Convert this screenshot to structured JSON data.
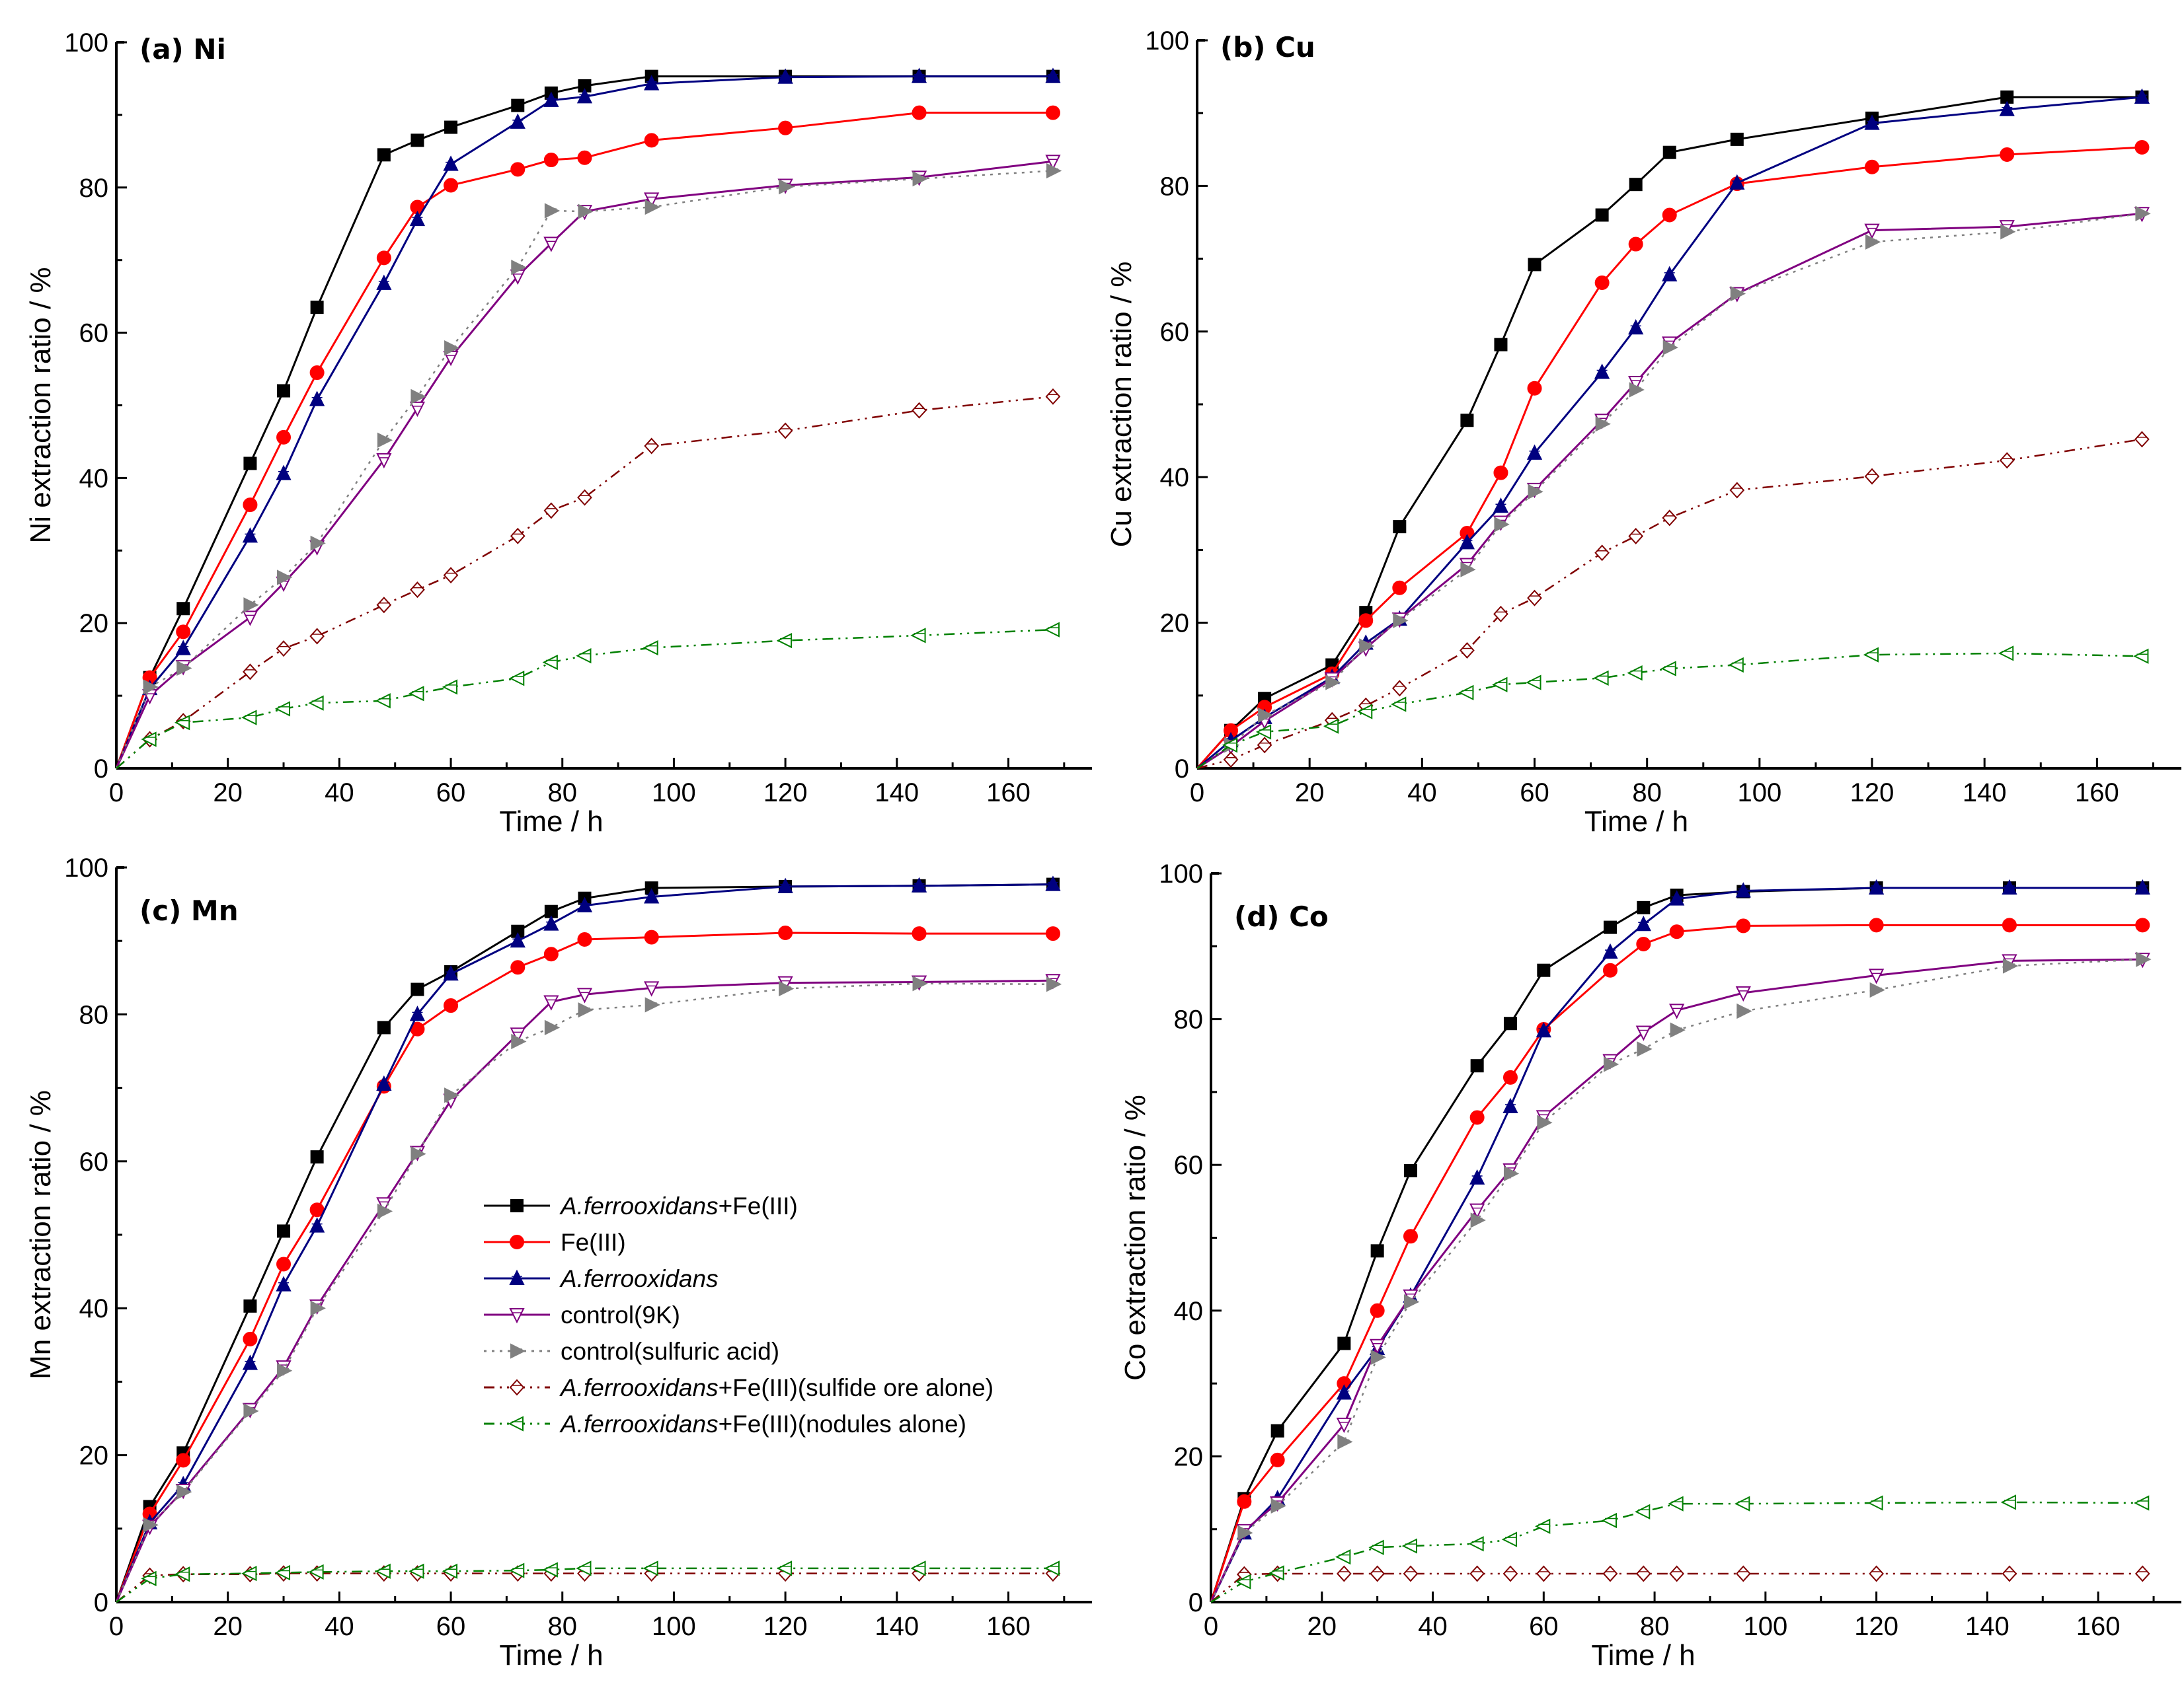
{
  "chart_data": {
    "type": "line",
    "x": [
      0,
      6,
      12,
      24,
      30,
      36,
      48,
      54,
      60,
      72,
      78,
      84,
      96,
      120,
      144,
      168
    ],
    "legend": [
      {
        "italic": "A.ferrooxidans",
        "rest": "+Fe(III)"
      },
      {
        "italic": "",
        "rest": "Fe(III)"
      },
      {
        "italic": "A.ferrooxidans",
        "rest": ""
      },
      {
        "italic": "",
        "rest": "control(9K)"
      },
      {
        "italic": "",
        "rest": "control(sulfuric acid)"
      },
      {
        "italic": "A.ferrooxidans",
        "rest": "+Fe(III)(sulfide ore alone)"
      },
      {
        "italic": "A.ferrooxidans",
        "rest": "+Fe(III)(nodules alone)"
      }
    ],
    "series_styles": [
      {
        "color": "#000000",
        "marker": "square",
        "dash": "solid"
      },
      {
        "color": "#ff0000",
        "marker": "circle",
        "dash": "solid"
      },
      {
        "color": "#000080",
        "marker": "triangle-up",
        "dash": "solid"
      },
      {
        "color": "#800080",
        "marker": "triangle-down-open",
        "dash": "solid"
      },
      {
        "color": "#808080",
        "marker": "triangle-right",
        "dash": "dot"
      },
      {
        "color": "#800000",
        "marker": "diamond-open",
        "dash": "dash-dot-dot"
      },
      {
        "color": "#008000",
        "marker": "triangle-left-open",
        "dash": "dash-dot-dot"
      }
    ],
    "panels": [
      {
        "title": "(a) Ni",
        "xlabel": "Time / h",
        "ylabel": "Ni extraction ratio / %",
        "xlim": [
          0,
          175
        ],
        "ylim": [
          0,
          100
        ],
        "xticks": [
          0,
          20,
          40,
          60,
          80,
          100,
          120,
          140,
          160
        ],
        "yticks": [
          0,
          20,
          40,
          60,
          80,
          100
        ],
        "series": [
          [
            0,
            12.5,
            22,
            42,
            52,
            63.5,
            84.5,
            86.5,
            88.3,
            91.3,
            93,
            94,
            95.3,
            95.3,
            95.3,
            95.3
          ],
          [
            0,
            12.5,
            18.8,
            36.3,
            45.6,
            54.5,
            70.3,
            77.3,
            80.3,
            82.5,
            83.8,
            84.1,
            86.5,
            88.2,
            90.3,
            90.3
          ],
          [
            0,
            11,
            16.5,
            32,
            40.6,
            50.8,
            66.8,
            75.6,
            83.2,
            89,
            92,
            92.5,
            94.3,
            95.2,
            95.3,
            95.3
          ],
          [
            0,
            10,
            14,
            20.8,
            25.5,
            30.5,
            42.5,
            49.6,
            56.6,
            67.8,
            72.3,
            76.7,
            78.4,
            80.3,
            81.4,
            83.6
          ],
          [
            0,
            11.2,
            13.8,
            22.5,
            26.3,
            31,
            45.2,
            51.2,
            57.9,
            69,
            76.8,
            76.7,
            77.3,
            80.1,
            81.2,
            82.3
          ],
          [
            0,
            4,
            6.5,
            13.3,
            16.5,
            18.2,
            22.5,
            24.6,
            26.6,
            32,
            35.5,
            37.3,
            44.4,
            46.5,
            49.3,
            51.2
          ],
          [
            0,
            4,
            6.3,
            7,
            8.2,
            9,
            9.3,
            10.3,
            11.2,
            12.4,
            14.6,
            15.5,
            16.6,
            17.6,
            18.3,
            19.1
          ]
        ]
      },
      {
        "title": "(b) Cu",
        "xlabel": "Time / h",
        "ylabel": "Cu extraction ratio / %",
        "xlim": [
          0,
          175
        ],
        "ylim": [
          0,
          100
        ],
        "xticks": [
          0,
          20,
          40,
          60,
          80,
          100,
          120,
          140,
          160
        ],
        "yticks": [
          0,
          20,
          40,
          60,
          80,
          100
        ],
        "series": [
          [
            0,
            5.2,
            9.6,
            14.2,
            21.4,
            33.2,
            47.8,
            58.2,
            69.2,
            76,
            80.2,
            84.6,
            86.4,
            89.3,
            92.2,
            92.2
          ],
          [
            0,
            5.2,
            8.4,
            13,
            20.3,
            24.8,
            32.3,
            40.6,
            52.2,
            66.7,
            72,
            76,
            80.3,
            82.6,
            84.3,
            85.3
          ],
          [
            0,
            3.8,
            7,
            12.5,
            17.2,
            20.5,
            31,
            36,
            43.3,
            54.4,
            60.5,
            67.8,
            80.4,
            88.6,
            90.5,
            92.2
          ],
          [
            0,
            3,
            6.5,
            12.3,
            16.5,
            20.5,
            28,
            33.8,
            38.3,
            47.8,
            53,
            58.4,
            65.2,
            73.9,
            74.4,
            76.2
          ],
          [
            0,
            3.2,
            7.3,
            11.8,
            16.8,
            20.3,
            27.3,
            33.5,
            38,
            47.3,
            52,
            57.8,
            65.2,
            72.3,
            73.7,
            76.2
          ],
          [
            0,
            1.2,
            3.2,
            6.6,
            8.6,
            11,
            16.2,
            21.2,
            23.4,
            29.6,
            31.9,
            34.4,
            38.2,
            40.1,
            42.3,
            45.2
          ],
          [
            0,
            3.2,
            5,
            5.8,
            7.8,
            8.8,
            10.4,
            11.5,
            11.8,
            12.4,
            13.1,
            13.7,
            14.2,
            15.6,
            15.8,
            15.4
          ]
        ]
      },
      {
        "title": "(c) Mn",
        "xlabel": "Time / h",
        "ylabel": "Mn extraction ratio / %",
        "xlim": [
          0,
          175
        ],
        "ylim": [
          0,
          100
        ],
        "xticks": [
          0,
          20,
          40,
          60,
          80,
          100,
          120,
          140,
          160
        ],
        "yticks": [
          0,
          20,
          40,
          60,
          80,
          100
        ],
        "series": [
          [
            0,
            13,
            20.3,
            40.3,
            50.5,
            60.6,
            78.2,
            83.4,
            85.8,
            91.3,
            94,
            95.8,
            97.2,
            97.4,
            97.5,
            97.7
          ],
          [
            0,
            12,
            19.3,
            35.8,
            46,
            53.4,
            70.2,
            78,
            81.2,
            86.4,
            88.2,
            90.2,
            90.5,
            91.1,
            91,
            91
          ],
          [
            0,
            10.8,
            16,
            32.5,
            43.2,
            51.2,
            70.5,
            80,
            85.5,
            90,
            92.3,
            94.8,
            96,
            97.4,
            97.5,
            97.7
          ],
          [
            0,
            10.3,
            15.2,
            26.2,
            32,
            40.3,
            54.2,
            61.2,
            68.3,
            77.3,
            81.7,
            82.7,
            83.6,
            84.3,
            84.4,
            84.6
          ],
          [
            0,
            10.5,
            15,
            26,
            31.5,
            40,
            53.2,
            61,
            69,
            76.3,
            78.2,
            80.6,
            81.3,
            83.5,
            84.2,
            84.1
          ],
          [
            0,
            3.6,
            3.8,
            3.8,
            3.9,
            3.9,
            3.9,
            3.9,
            3.9,
            3.9,
            3.9,
            3.9,
            3.9,
            3.9,
            3.9,
            3.9
          ],
          [
            0,
            3.2,
            3.8,
            3.9,
            4,
            4.1,
            4.2,
            4.2,
            4.2,
            4.3,
            4.4,
            4.6,
            4.6,
            4.6,
            4.6,
            4.6
          ]
        ]
      },
      {
        "title": "(d) Co",
        "xlabel": "Time / h",
        "ylabel": "Co extraction ratio / %",
        "xlim": [
          0,
          175
        ],
        "ylim": [
          0,
          100
        ],
        "xticks": [
          0,
          20,
          40,
          60,
          80,
          100,
          120,
          140,
          160
        ],
        "yticks": [
          0,
          20,
          40,
          60,
          80,
          100
        ],
        "series": [
          [
            0,
            14.2,
            23.5,
            35.5,
            48.2,
            59.2,
            73.6,
            79.4,
            86.7,
            92.6,
            95.3,
            97,
            97.5,
            98,
            98,
            98
          ],
          [
            0,
            13.8,
            19.5,
            30,
            40,
            50.2,
            66.5,
            72,
            78.6,
            86.7,
            90.3,
            92,
            92.8,
            92.9,
            92.9,
            92.9
          ],
          [
            0,
            9.5,
            14.2,
            28.7,
            34.8,
            42,
            58.2,
            68,
            78.4,
            89.2,
            93,
            96.5,
            97.6,
            98,
            98,
            98
          ],
          [
            0,
            9.8,
            13.6,
            24.4,
            35.2,
            42,
            53.8,
            59.3,
            66.6,
            74.3,
            78.2,
            81.2,
            83.6,
            86,
            88,
            88.2
          ],
          [
            0,
            9.5,
            13.2,
            22,
            33.6,
            41.2,
            52.4,
            58.8,
            65.8,
            73.8,
            75.9,
            78.5,
            81.1,
            84,
            87.3,
            88.2
          ],
          [
            0,
            3.8,
            3.9,
            3.9,
            3.9,
            3.9,
            3.9,
            3.9,
            3.9,
            3.9,
            3.9,
            3.9,
            3.9,
            3.9,
            3.9,
            3.9
          ],
          [
            0,
            2.8,
            4,
            6.2,
            7.5,
            7.7,
            8,
            8.6,
            10.4,
            11.2,
            12.4,
            13.5,
            13.5,
            13.6,
            13.7,
            13.6
          ]
        ]
      }
    ]
  }
}
